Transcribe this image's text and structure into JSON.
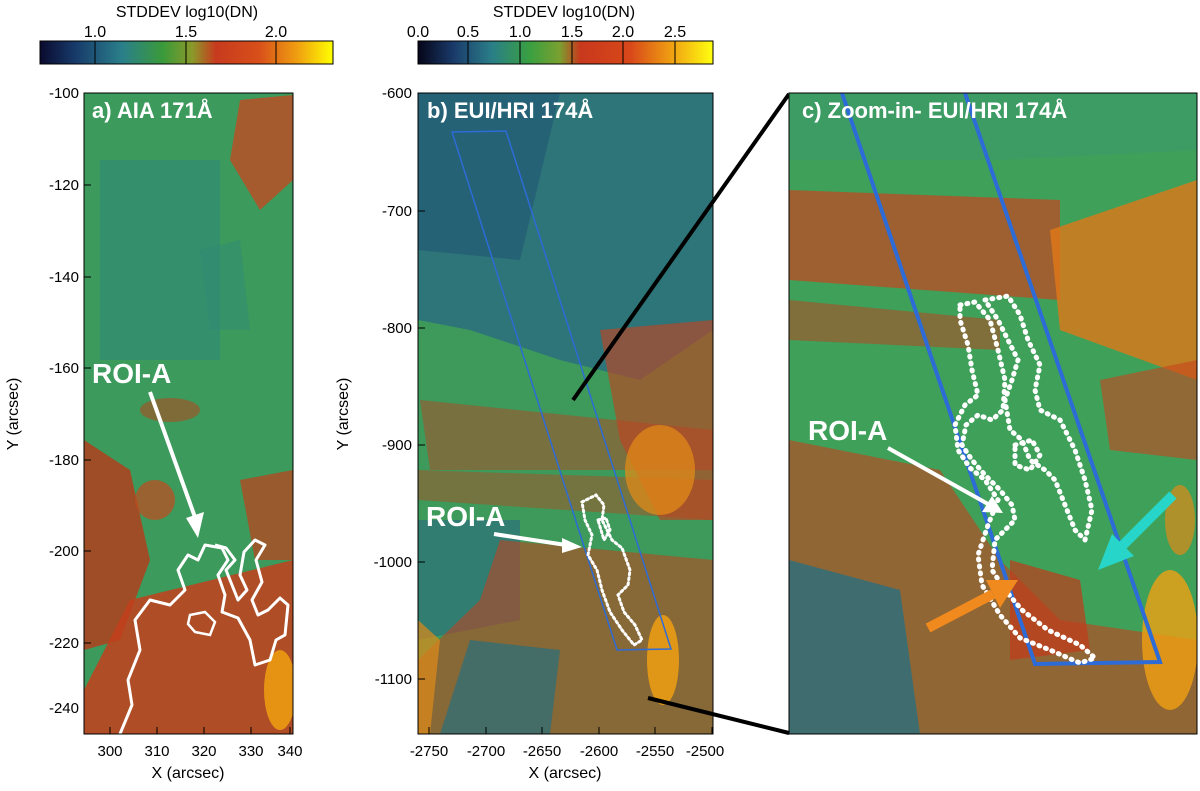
{
  "colorbars": [
    {
      "label": "STDDEV log10(DN)",
      "ticks": [
        "1.0",
        "1.5",
        "2.0"
      ]
    },
    {
      "label": "STDDEV log10(DN)",
      "ticks": [
        "0.0",
        "0.5",
        "1.0",
        "1.5",
        "2.0",
        "2.5"
      ]
    }
  ],
  "panels": {
    "a": {
      "title": "a) AIA 171Å",
      "roi_label": "ROI-A",
      "xlabel": "X (arcsec)",
      "ylabel": "Y (arcsec)",
      "xticks": [
        "300",
        "310",
        "320",
        "330",
        "340"
      ],
      "yticks": [
        "-100",
        "-120",
        "-140",
        "-160",
        "-180",
        "-200",
        "-220",
        "-240"
      ]
    },
    "b": {
      "title": "b) EUI/HRI 174Å",
      "roi_label": "ROI-A",
      "xlabel": "X (arcsec)",
      "ylabel": "Y (arcsec)",
      "xticks": [
        "-2750",
        "-2700",
        "-2650",
        "-2600",
        "-2550",
        "-2500"
      ],
      "yticks": [
        "-600",
        "-700",
        "-800",
        "-900",
        "-1000",
        "-1100"
      ]
    },
    "c": {
      "title": "c) Zoom-in- EUI/HRI 174Å",
      "roi_label": "ROI-A"
    }
  },
  "colors": {
    "roi_contour": "#ffffff",
    "box": "#2d6bd6",
    "arrow_orange": "#f08a1e",
    "arrow_cyan": "#27d6c8"
  }
}
